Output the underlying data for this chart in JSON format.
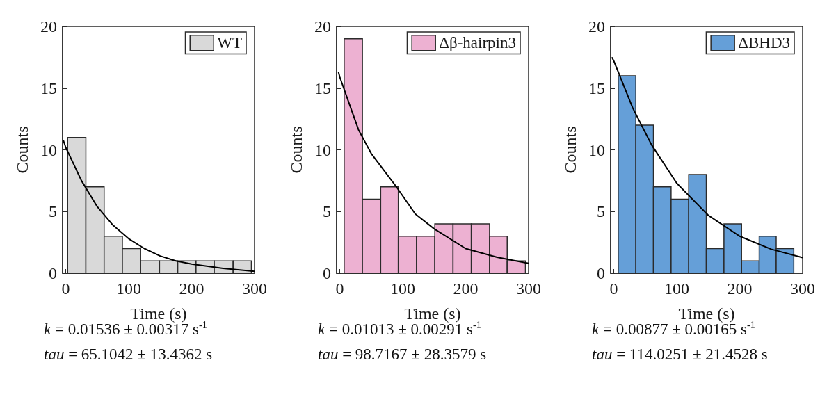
{
  "chart_data": [
    {
      "type": "histogram",
      "xlabel": "Time (s)",
      "ylabel": "Counts",
      "xlim": [
        -5,
        300
      ],
      "ylim": [
        0,
        20
      ],
      "xticks": [
        0,
        100,
        200,
        300
      ],
      "yticks": [
        0,
        5,
        10,
        15,
        20
      ],
      "legend": "top right",
      "grid": false,
      "series": [
        {
          "name": "WT",
          "color": "#d9d9d9",
          "bins": [
            3,
            32,
            61,
            90,
            119,
            149,
            178,
            207,
            236,
            266,
            295
          ],
          "values": [
            11,
            7,
            3,
            2,
            1,
            1,
            1,
            1,
            1,
            1
          ]
        },
        {
          "type": "line",
          "color": "#000000",
          "x": [
            -4,
            0,
            25,
            50,
            75,
            100,
            125,
            150,
            175,
            200,
            250,
            300
          ],
          "values": [
            10.8,
            10.2,
            7.5,
            5.4,
            3.9,
            2.8,
            2.0,
            1.4,
            1.0,
            0.75,
            0.4,
            0.15
          ]
        }
      ],
      "annotations": [
        "k = 0.01536 ± 0.00317 s$^{-1}$",
        "tau = 65.1042 ± 13.4362 s"
      ]
    },
    {
      "type": "histogram",
      "xlabel": "Time (s)",
      "ylabel": "Counts",
      "xlim": [
        -5,
        300
      ],
      "ylim": [
        0,
        20
      ],
      "xticks": [
        0,
        100,
        200,
        300
      ],
      "yticks": [
        0,
        5,
        10,
        15,
        20
      ],
      "legend": "top right",
      "grid": false,
      "series": [
        {
          "name": "Δβ-hairpin3",
          "color": "#edb1d2",
          "bins": [
            7,
            36,
            65,
            93,
            122,
            151,
            180,
            209,
            238,
            266,
            295
          ],
          "values": [
            19,
            6,
            7,
            3,
            3,
            4,
            4,
            4,
            3,
            1
          ]
        },
        {
          "type": "line",
          "color": "#000000",
          "x": [
            -2,
            0,
            30,
            50,
            90,
            120,
            150,
            200,
            250,
            300
          ],
          "values": [
            16.3,
            15.9,
            11.6,
            9.7,
            7.0,
            4.8,
            3.6,
            2.0,
            1.3,
            0.8
          ]
        }
      ],
      "annotations": [
        "k = 0.01013 ± 0.00291 s$^{-1}$",
        "tau = 98.7167 ± 28.3579 s"
      ]
    },
    {
      "type": "histogram",
      "xlabel": "Time (s)",
      "ylabel": "Counts",
      "xlim": [
        -5,
        300
      ],
      "ylim": [
        0,
        20
      ],
      "xticks": [
        0,
        100,
        200,
        300
      ],
      "yticks": [
        0,
        5,
        10,
        15,
        20
      ],
      "legend": "top right",
      "grid": false,
      "series": [
        {
          "name": "ΔBHD3",
          "color": "#659fd8",
          "bins": [
            7,
            35,
            63,
            91,
            119,
            147,
            175,
            203,
            231,
            258,
            286
          ],
          "values": [
            16,
            12,
            7,
            6,
            8,
            2,
            4,
            1,
            3,
            2
          ]
        },
        {
          "type": "line",
          "color": "#000000",
          "x": [
            -3,
            0,
            30,
            60,
            100,
            150,
            200,
            250,
            300
          ],
          "values": [
            17.5,
            17.2,
            13.4,
            10.4,
            7.3,
            4.7,
            3.0,
            1.95,
            1.27
          ]
        }
      ],
      "annotations": [
        "k = 0.00877 ± 0.00165 s$^{-1}$",
        "tau = 114.0251 ± 21.4528 s"
      ]
    }
  ]
}
